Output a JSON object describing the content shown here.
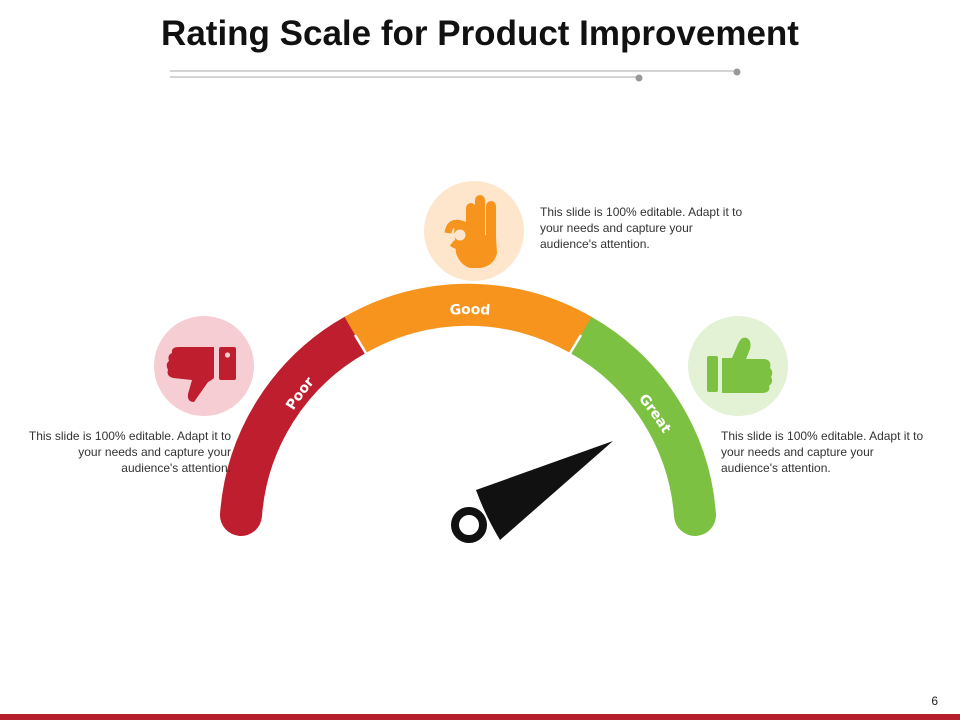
{
  "title": "Rating Scale for Product Improvement",
  "page_number": "6",
  "colors": {
    "poor": "#be1e2d",
    "good": "#f7941d",
    "great": "#7dc142",
    "poor_bg": "#f6cdd2",
    "good_bg": "#fde6cc",
    "great_bg": "#e3f1d5",
    "needle": "#111111",
    "footer": "#b5202c"
  },
  "gauge": {
    "segments": [
      {
        "label": "Poor",
        "color": "#be1e2d"
      },
      {
        "label": "Good",
        "color": "#f7941d"
      },
      {
        "label": "Great",
        "color": "#7dc142"
      }
    ]
  },
  "items": [
    {
      "icon": "thumbs-down-icon",
      "text": "This slide is 100% editable. Adapt it to your needs and capture your audience's attention."
    },
    {
      "icon": "ok-hand-icon",
      "text": "This slide is 100% editable. Adapt it to your needs and capture your audience's attention."
    },
    {
      "icon": "thumbs-up-icon",
      "text": "This slide is 100% editable. Adapt it to your needs and capture your audience's attention."
    }
  ]
}
